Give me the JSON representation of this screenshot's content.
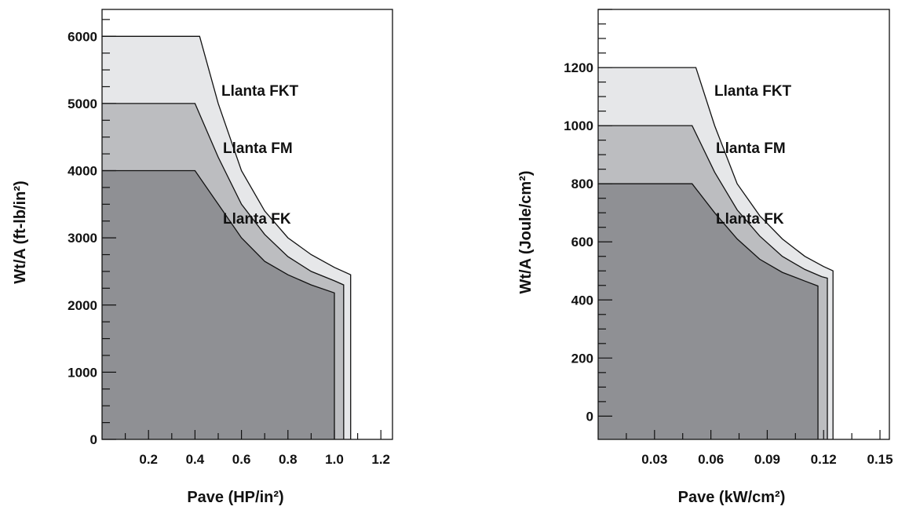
{
  "chart_data": [
    {
      "type": "area",
      "xlabel": "Pave (HP/in²)",
      "ylabel": "Wt/A (ft-lb/in²)",
      "xlim": [
        0.0,
        1.25
      ],
      "ylim": [
        0,
        6400
      ],
      "x_ticks": [
        0.2,
        0.4,
        0.6,
        0.8,
        1.0,
        1.2
      ],
      "x_tick_labels": [
        "0.2",
        "0.4",
        "0.6",
        "0.8",
        "1.0",
        "1.2"
      ],
      "y_ticks": [
        0,
        1000,
        2000,
        3000,
        4000,
        5000,
        6000
      ],
      "y_tick_labels": [
        "0",
        "1000",
        "2000",
        "3000",
        "4000",
        "5000",
        "6000"
      ],
      "grid": false,
      "series": [
        {
          "name": "Llanta FKT",
          "color": "#e6e7e9",
          "points": [
            [
              0.0,
              6000
            ],
            [
              0.42,
              6000
            ],
            [
              0.5,
              5000
            ],
            [
              0.6,
              4000
            ],
            [
              0.7,
              3400
            ],
            [
              0.8,
              3000
            ],
            [
              0.9,
              2750
            ],
            [
              1.0,
              2560
            ],
            [
              1.07,
              2450
            ]
          ],
          "x_end": 1.07
        },
        {
          "name": "Llanta FM",
          "color": "#bcbdc0",
          "points": [
            [
              0.0,
              5000
            ],
            [
              0.4,
              5000
            ],
            [
              0.5,
              4200
            ],
            [
              0.6,
              3500
            ],
            [
              0.7,
              3050
            ],
            [
              0.8,
              2720
            ],
            [
              0.9,
              2500
            ],
            [
              1.0,
              2360
            ],
            [
              1.04,
              2300
            ]
          ],
          "x_end": 1.04
        },
        {
          "name": "Llanta FK",
          "color": "#8f9094",
          "points": [
            [
              0.0,
              4000
            ],
            [
              0.4,
              4000
            ],
            [
              0.5,
              3500
            ],
            [
              0.6,
              3000
            ],
            [
              0.7,
              2650
            ],
            [
              0.8,
              2450
            ],
            [
              0.9,
              2300
            ],
            [
              1.0,
              2180
            ]
          ],
          "x_end": 1.0
        }
      ]
    },
    {
      "type": "area",
      "xlabel": "Pave (kW/cm²)",
      "ylabel": "Wt/A (Joule/cm²)",
      "xlim": [
        0.0,
        0.155
      ],
      "ylim": [
        -80,
        1400
      ],
      "x_ticks": [
        0.03,
        0.06,
        0.09,
        0.12,
        0.15
      ],
      "x_tick_labels": [
        "0.03",
        "0.06",
        "0.09",
        "0.12",
        "0.15"
      ],
      "y_ticks": [
        0,
        200,
        400,
        600,
        800,
        1000,
        1200
      ],
      "y_tick_labels": [
        "0",
        "200",
        "400",
        "600",
        "800",
        "1000",
        "1200"
      ],
      "grid": false,
      "series": [
        {
          "name": "Llanta FKT",
          "color": "#e6e7e9",
          "points": [
            [
              0.0,
              1200
            ],
            [
              0.052,
              1200
            ],
            [
              0.062,
              1000
            ],
            [
              0.074,
              800
            ],
            [
              0.086,
              690
            ],
            [
              0.098,
              610
            ],
            [
              0.11,
              550
            ],
            [
              0.12,
              515
            ],
            [
              0.125,
              500
            ]
          ],
          "x_end": 0.125
        },
        {
          "name": "Llanta FM",
          "color": "#bcbdc0",
          "points": [
            [
              0.0,
              1000
            ],
            [
              0.05,
              1000
            ],
            [
              0.062,
              840
            ],
            [
              0.074,
              710
            ],
            [
              0.086,
              620
            ],
            [
              0.098,
              550
            ],
            [
              0.11,
              505
            ],
            [
              0.119,
              480
            ],
            [
              0.122,
              475
            ]
          ],
          "x_end": 0.122
        },
        {
          "name": "Llanta FK",
          "color": "#8f9094",
          "points": [
            [
              0.0,
              800
            ],
            [
              0.05,
              800
            ],
            [
              0.062,
              700
            ],
            [
              0.074,
              610
            ],
            [
              0.086,
              540
            ],
            [
              0.098,
              495
            ],
            [
              0.11,
              465
            ],
            [
              0.117,
              448
            ]
          ],
          "x_end": 0.117
        }
      ]
    }
  ]
}
